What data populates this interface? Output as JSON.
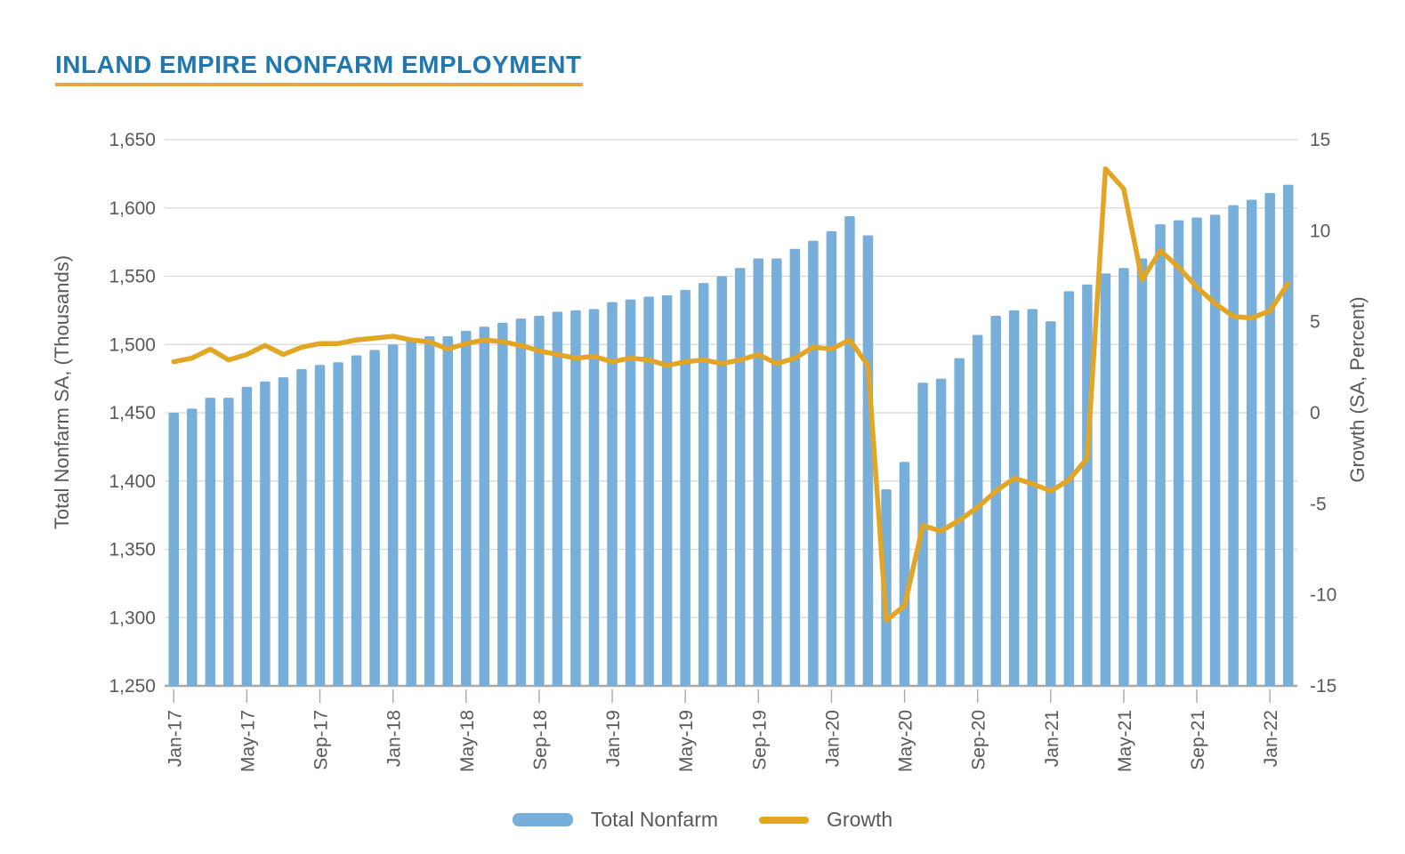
{
  "title": "INLAND EMPIRE NONFARM EMPLOYMENT",
  "legend": {
    "bar_label": "Total Nonfarm",
    "line_label": "Growth"
  },
  "axes": {
    "left_title": "Total Nonfarm SA, (Thousands)",
    "right_title": "Growth (SA, Percent)",
    "left_tick_labels": [
      "1,650",
      "1,600",
      "1,550",
      "1,500",
      "1,450",
      "1,400",
      "1,350",
      "1,300",
      "1,250"
    ],
    "left_tick_values": [
      1650,
      1600,
      1550,
      1500,
      1450,
      1400,
      1350,
      1300,
      1250
    ],
    "right_tick_labels": [
      "15",
      "10",
      "5",
      "0",
      "-5",
      "-10",
      "-15"
    ],
    "right_tick_values": [
      15,
      10,
      5,
      0,
      -5,
      -10,
      -15
    ],
    "x_tick_labels": [
      "Jan-17",
      "May-17",
      "Sep-17",
      "Jan-18",
      "May-18",
      "Sep-18",
      "Jan-19",
      "May-19",
      "Sep-19",
      "Jan-20",
      "May-20",
      "Sep-20",
      "Jan-21",
      "May-21",
      "Sep-21",
      "Jan-22"
    ]
  },
  "colors": {
    "bar": "#77AFDA",
    "line": "#E2A524",
    "title": "#1F78B0",
    "title_rule": "#EAA83C",
    "axis_text": "#595959",
    "gridline": "#D8D8D8",
    "axis_line": "#A8A8A8"
  },
  "chart_data": {
    "type": "bar",
    "subtype": "bar+line dual axis",
    "title": "INLAND EMPIRE NONFARM EMPLOYMENT",
    "xlabel": "",
    "ylabel_left": "Total Nonfarm SA, (Thousands)",
    "ylabel_right": "Growth (SA, Percent)",
    "left_axis_range": [
      1250,
      1650
    ],
    "right_axis_range": [
      -15,
      15
    ],
    "x_label_every": 4,
    "grid": true,
    "legend_position": "bottom",
    "categories": [
      "Jan-17",
      "Feb-17",
      "Mar-17",
      "Apr-17",
      "May-17",
      "Jun-17",
      "Jul-17",
      "Aug-17",
      "Sep-17",
      "Oct-17",
      "Nov-17",
      "Dec-17",
      "Jan-18",
      "Feb-18",
      "Mar-18",
      "Apr-18",
      "May-18",
      "Jun-18",
      "Jul-18",
      "Aug-18",
      "Sep-18",
      "Oct-18",
      "Nov-18",
      "Dec-18",
      "Jan-19",
      "Feb-19",
      "Mar-19",
      "Apr-19",
      "May-19",
      "Jun-19",
      "Jul-19",
      "Aug-19",
      "Sep-19",
      "Oct-19",
      "Nov-19",
      "Dec-19",
      "Jan-20",
      "Feb-20",
      "Mar-20",
      "Apr-20",
      "May-20",
      "Jun-20",
      "Jul-20",
      "Aug-20",
      "Sep-20",
      "Oct-20",
      "Nov-20",
      "Dec-20",
      "Jan-21",
      "Feb-21",
      "Mar-21",
      "Apr-21",
      "May-21",
      "Jun-21",
      "Jul-21",
      "Aug-21",
      "Sep-21",
      "Oct-21",
      "Nov-21",
      "Dec-21",
      "Jan-22",
      "Feb-22"
    ],
    "series": [
      {
        "name": "Total Nonfarm",
        "type": "bar",
        "axis": "left",
        "color": "#77AFDA",
        "values": [
          1450,
          1453,
          1461,
          1461,
          1469,
          1473,
          1476,
          1482,
          1485,
          1487,
          1492,
          1496,
          1500,
          1504,
          1506,
          1506,
          1510,
          1513,
          1516,
          1519,
          1521,
          1524,
          1525,
          1526,
          1531,
          1533,
          1535,
          1536,
          1540,
          1545,
          1550,
          1556,
          1563,
          1563,
          1570,
          1576,
          1583,
          1594,
          1580,
          1394,
          1414,
          1472,
          1475,
          1490,
          1507,
          1521,
          1525,
          1526,
          1517,
          1539,
          1544,
          1552,
          1556,
          1563,
          1588,
          1591,
          1593,
          1595,
          1602,
          1606,
          1611,
          1617
        ]
      },
      {
        "name": "Growth",
        "type": "line",
        "axis": "right",
        "color": "#E2A524",
        "values": [
          2.8,
          3.0,
          3.5,
          2.9,
          3.2,
          3.7,
          3.2,
          3.6,
          3.8,
          3.8,
          4.0,
          4.1,
          4.2,
          4.0,
          3.9,
          3.5,
          3.8,
          4.0,
          3.9,
          3.7,
          3.4,
          3.2,
          3.0,
          3.1,
          2.8,
          3.0,
          2.9,
          2.6,
          2.8,
          2.9,
          2.7,
          2.9,
          3.2,
          2.7,
          3.0,
          3.6,
          3.5,
          4.0,
          2.6,
          -11.4,
          -10.6,
          -6.2,
          -6.5,
          -5.9,
          -5.2,
          -4.3,
          -3.6,
          -3.9,
          -4.3,
          -3.7,
          -2.5,
          13.4,
          12.3,
          7.3,
          8.9,
          8.0,
          6.9,
          6.0,
          5.3,
          5.2,
          5.6,
          7.1
        ]
      }
    ]
  }
}
